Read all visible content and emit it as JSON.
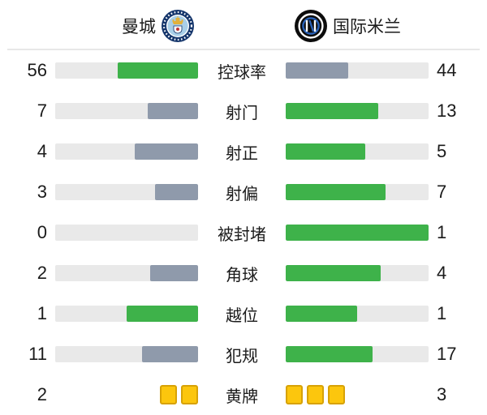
{
  "header": {
    "home_name": "曼城",
    "away_name": "国际米兰"
  },
  "stats": [
    {
      "label": "控球率",
      "home": "56",
      "away": "44",
      "home_pct": 56,
      "away_pct": 44,
      "home_state": "win",
      "away_state": "lose"
    },
    {
      "label": "射门",
      "home": "7",
      "away": "13",
      "home_pct": 35,
      "away_pct": 65,
      "home_state": "lose",
      "away_state": "win"
    },
    {
      "label": "射正",
      "home": "4",
      "away": "5",
      "home_pct": 44.4,
      "away_pct": 55.6,
      "home_state": "lose",
      "away_state": "win"
    },
    {
      "label": "射偏",
      "home": "3",
      "away": "7",
      "home_pct": 30,
      "away_pct": 70,
      "home_state": "lose",
      "away_state": "win"
    },
    {
      "label": "被封堵",
      "home": "0",
      "away": "1",
      "home_pct": 0,
      "away_pct": 100,
      "home_state": "lose",
      "away_state": "win"
    },
    {
      "label": "角球",
      "home": "2",
      "away": "4",
      "home_pct": 33.3,
      "away_pct": 66.7,
      "home_state": "lose",
      "away_state": "win"
    },
    {
      "label": "越位",
      "home": "1",
      "away": "1",
      "home_pct": 50,
      "away_pct": 50,
      "home_state": "win",
      "away_state": "win"
    },
    {
      "label": "犯规",
      "home": "11",
      "away": "17",
      "home_pct": 39.3,
      "away_pct": 60.7,
      "home_state": "lose",
      "away_state": "win"
    }
  ],
  "cards": {
    "label": "黄牌",
    "home": 2,
    "away": 3,
    "home_text": "2",
    "away_text": "3"
  },
  "colors": {
    "win": "#3eb24a",
    "lose": "#8f9aab",
    "track": "#e9e9e9",
    "card": "#fcc60d",
    "card_border": "#d7a206"
  },
  "chart_data": {
    "type": "bar",
    "title": "曼城 vs 国际米兰 比赛数据",
    "categories": [
      "控球率",
      "射门",
      "射正",
      "射偏",
      "被封堵",
      "角球",
      "越位",
      "犯规",
      "黄牌"
    ],
    "series": [
      {
        "name": "曼城",
        "values": [
          56,
          7,
          4,
          3,
          0,
          2,
          1,
          11,
          2
        ]
      },
      {
        "name": "国际米兰",
        "values": [
          44,
          13,
          5,
          7,
          1,
          4,
          1,
          17,
          3
        ]
      }
    ],
    "legend_position": "top",
    "grid": false,
    "note": "paired horizontal bars; each bar width = value / (home+away); green = higher side, slate gray = lower side; 黄牌 row shown as yellow card icons"
  }
}
